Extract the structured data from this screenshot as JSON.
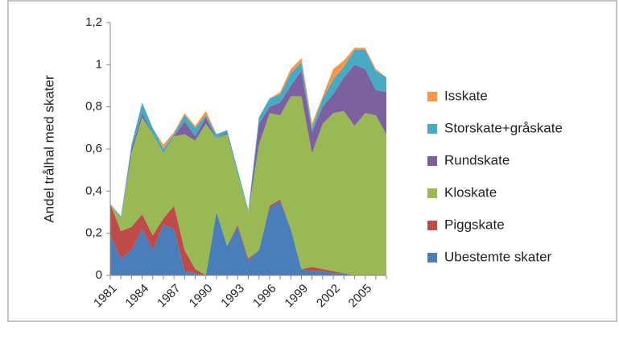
{
  "chart_data": {
    "type": "stacked-area",
    "y_label": "Andel trålhal med skater",
    "categories": [
      "1981",
      null,
      null,
      "1984",
      null,
      null,
      "1987",
      null,
      null,
      "1990",
      null,
      null,
      "1993",
      null,
      null,
      "1996",
      null,
      null,
      "1999",
      null,
      null,
      "2002",
      null,
      null,
      "2005",
      null,
      null
    ],
    "ylim": [
      0,
      1.2
    ],
    "yticks": [
      0,
      {
        "value": 0.2,
        "label": "0,2"
      },
      {
        "value": 0.4,
        "label": "0,4"
      },
      {
        "value": 0.6,
        "label": "0,6"
      },
      {
        "value": 0.8,
        "label": "0,8"
      },
      1,
      {
        "value": 1.2,
        "label": "1,2"
      }
    ],
    "legend": "right",
    "series": [
      {
        "name": "Ubestemte skater",
        "color": "#4a7ebb",
        "values": [
          0.19,
          0.08,
          0.12,
          0.22,
          0.12,
          0.24,
          0.22,
          0.02,
          0.01,
          0,
          0.3,
          0.14,
          0.23,
          0.07,
          0.12,
          0.32,
          0.35,
          0.22,
          0.03,
          0.02,
          0.02,
          0.01,
          0.01,
          0,
          0,
          0,
          0
        ]
      },
      {
        "name": "Piggskate",
        "color": "#be4b48",
        "values": [
          0.15,
          0.13,
          0.11,
          0.07,
          0.07,
          0.03,
          0.11,
          0.1,
          0.02,
          0,
          0,
          0,
          0.01,
          0.01,
          0,
          0.01,
          0.01,
          0,
          0,
          0.02,
          0.01,
          0.01,
          0,
          0,
          0,
          0,
          0
        ]
      },
      {
        "name": "Kloskate",
        "color": "#98b954",
        "values": [
          0,
          0.06,
          0.35,
          0.46,
          0.48,
          0.31,
          0.33,
          0.55,
          0.61,
          0.72,
          0.35,
          0.53,
          0.24,
          0.22,
          0.5,
          0.44,
          0.4,
          0.63,
          0.82,
          0.54,
          0.69,
          0.75,
          0.77,
          0.71,
          0.77,
          0.76,
          0.67
        ]
      },
      {
        "name": "Rundskate",
        "color": "#7d60a0",
        "values": [
          0,
          0,
          0.02,
          0.02,
          0,
          0,
          0,
          0.06,
          0.02,
          0.03,
          0,
          0.01,
          0,
          0,
          0.1,
          0.03,
          0.06,
          0.05,
          0.12,
          0.1,
          0.08,
          0.09,
          0.16,
          0.29,
          0.21,
          0.12,
          0.2
        ]
      },
      {
        "name": "Storskate+gråskate",
        "color": "#46aac5",
        "values": [
          0,
          0.01,
          0.02,
          0.05,
          0.03,
          0.02,
          0.01,
          0.03,
          0.04,
          0.01,
          0.02,
          0.01,
          0.02,
          0.01,
          0.03,
          0.04,
          0.04,
          0.06,
          0.04,
          0.02,
          0.04,
          0.07,
          0.05,
          0.07,
          0.09,
          0.09,
          0.07
        ]
      },
      {
        "name": "Isskate",
        "color": "#f79646",
        "values": [
          0,
          0,
          0,
          0,
          0,
          0.02,
          0.01,
          0.01,
          0.01,
          0.02,
          0,
          0,
          0,
          0,
          0,
          0,
          0.01,
          0.02,
          0.02,
          0.02,
          0.01,
          0.05,
          0.03,
          0.01,
          0.01,
          0.01,
          0
        ]
      }
    ]
  }
}
